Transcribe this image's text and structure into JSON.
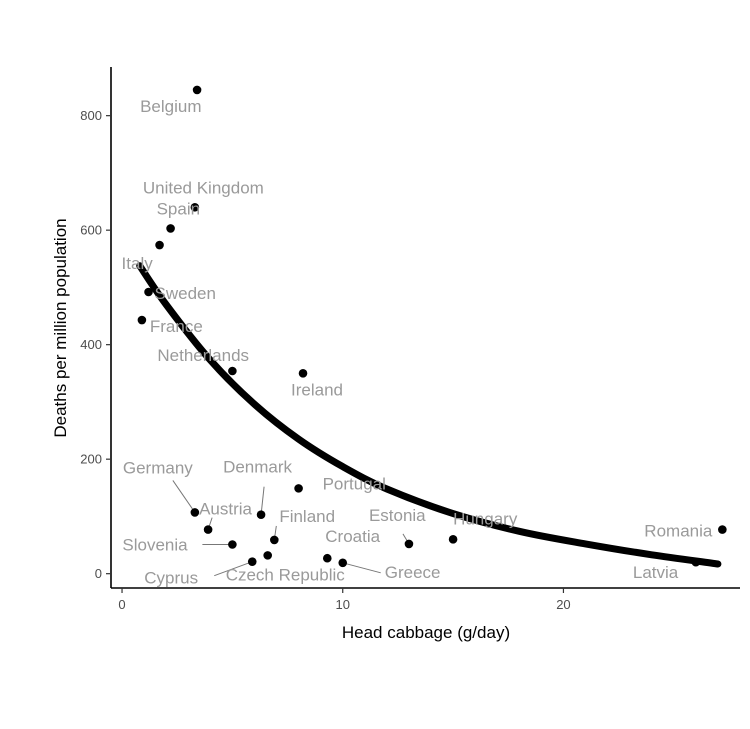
{
  "chart_data": {
    "type": "scatter",
    "xlabel": "Head cabbage (g/day)",
    "ylabel": "Deaths per million population",
    "xlim": [
      -0.5,
      28
    ],
    "ylim": [
      -25,
      885
    ],
    "x_ticks": [
      0,
      10,
      20
    ],
    "y_ticks": [
      0,
      200,
      400,
      600,
      800
    ],
    "grid": false,
    "points": [
      {
        "label": "Belgium",
        "x": 3.4,
        "y": 845
      },
      {
        "label": "United Kingdom",
        "x": 3.3,
        "y": 640
      },
      {
        "label": "Spain",
        "x": 2.2,
        "y": 603
      },
      {
        "label": "Italy",
        "x": 1.7,
        "y": 574
      },
      {
        "label": "Sweden",
        "x": 1.2,
        "y": 492
      },
      {
        "label": "France",
        "x": 0.9,
        "y": 443
      },
      {
        "label": "Netherlands",
        "x": 5.0,
        "y": 354
      },
      {
        "label": "Ireland",
        "x": 8.2,
        "y": 350
      },
      {
        "label": "Portugal",
        "x": 8.0,
        "y": 149
      },
      {
        "label": "Germany",
        "x": 3.3,
        "y": 107
      },
      {
        "label": "Denmark",
        "x": 6.3,
        "y": 103
      },
      {
        "label": "Austria",
        "x": 3.9,
        "y": 77
      },
      {
        "label": "Finland",
        "x": 6.9,
        "y": 59
      },
      {
        "label": "Slovenia",
        "x": 5.0,
        "y": 51
      },
      {
        "label": "Estonia",
        "x": 13.0,
        "y": 52
      },
      {
        "label": "Hungary",
        "x": 15.0,
        "y": 60
      },
      {
        "label": "Romania",
        "x": 27.2,
        "y": 77
      },
      {
        "label": "Croatia",
        "x": 9.3,
        "y": 27
      },
      {
        "label": "Czech Republic",
        "x": 6.6,
        "y": 32
      },
      {
        "label": "Cyprus",
        "x": 5.9,
        "y": 21
      },
      {
        "label": "Greece",
        "x": 10.0,
        "y": 19
      },
      {
        "label": "Latvia",
        "x": 26.0,
        "y": 20
      }
    ],
    "trend": {
      "x": [
        0.8,
        2,
        4,
        6,
        8,
        10,
        12,
        15,
        18,
        21,
        24,
        27
      ],
      "y": [
        538,
        470,
        373,
        296,
        235,
        187,
        148,
        105,
        74,
        52,
        33,
        17
      ]
    }
  }
}
